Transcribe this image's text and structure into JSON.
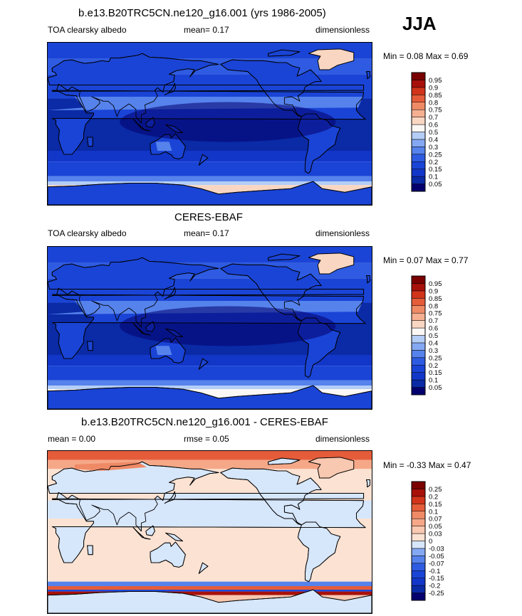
{
  "season": "JJA",
  "colors": {
    "land_line": "#000000",
    "dark_blue": "#0a2aa6",
    "mid_blue": "#1a44d6",
    "light_blue": "#a8c8f5",
    "peach": "#f8c8b0",
    "white": "#ffffff",
    "red": "#d83b1e",
    "dark_red": "#900000"
  },
  "panels": [
    {
      "title": "b.e13.B20TRC5CN.ne120_g16.001 (yrs 1986-2005)",
      "left_label": "TOA clearsky albedo",
      "mid_label": "mean=   0.17",
      "right_label": "dimensionless",
      "minmax": "Min =   0.08 Max =   0.69",
      "type": "albedo"
    },
    {
      "title": "CERES-EBAF",
      "left_label": "TOA clearsky albedo",
      "mid_label": "mean=   0.17",
      "right_label": "dimensionless",
      "minmax": "Min =   0.07 Max =   0.77",
      "type": "albedo"
    },
    {
      "title": "b.e13.B20TRC5CN.ne120_g16.001 - CERES-EBAF",
      "left_label": "mean =    0.00",
      "mid_label": "rmse =   0.05",
      "right_label": "dimensionless",
      "minmax": "Min =  -0.33 Max =   0.47",
      "type": "diff"
    }
  ],
  "chart_data": [
    {
      "type": "heatmap",
      "title": "b.e13.B20TRC5CN.ne120_g16.001 (yrs 1986-2005)",
      "variable": "TOA clearsky albedo",
      "units": "dimensionless",
      "mean": 0.17,
      "min": 0.08,
      "max": 0.69,
      "colorbar_levels": [
        "0.05",
        "0.1",
        "0.15",
        "0.2",
        "0.25",
        "0.3",
        "0.4",
        "0.5",
        "0.6",
        "0.7",
        "0.75",
        "0.8",
        "0.85",
        "0.9",
        "0.95"
      ],
      "colorbar_colors": [
        "#04006e",
        "#0a2aa6",
        "#1236c8",
        "#1a44d6",
        "#2e5be2",
        "#5682ec",
        "#84a8f2",
        "#b4cdf6",
        "#fbf7f5",
        "#f8d6c2",
        "#f5b092",
        "#ef8a66",
        "#e55c3a",
        "#d1341a",
        "#a8100a",
        "#7a0000"
      ]
    },
    {
      "type": "heatmap",
      "title": "CERES-EBAF",
      "variable": "TOA clearsky albedo",
      "units": "dimensionless",
      "mean": 0.17,
      "min": 0.07,
      "max": 0.77,
      "colorbar_levels": [
        "0.05",
        "0.1",
        "0.15",
        "0.2",
        "0.25",
        "0.3",
        "0.4",
        "0.5",
        "0.6",
        "0.7",
        "0.75",
        "0.8",
        "0.85",
        "0.9",
        "0.95"
      ],
      "colorbar_colors": [
        "#04006e",
        "#0a2aa6",
        "#1236c8",
        "#1a44d6",
        "#2e5be2",
        "#5682ec",
        "#84a8f2",
        "#b4cdf6",
        "#fbf7f5",
        "#f8d6c2",
        "#f5b092",
        "#ef8a66",
        "#e55c3a",
        "#d1341a",
        "#a8100a",
        "#7a0000"
      ]
    },
    {
      "type": "heatmap",
      "title": "b.e13.B20TRC5CN.ne120_g16.001 - CERES-EBAF",
      "units": "dimensionless",
      "mean": 0.0,
      "rmse": 0.05,
      "min": -0.33,
      "max": 0.47,
      "colorbar_levels": [
        "-0.25",
        "-0.2",
        "-0.15",
        "-0.1",
        "-0.07",
        "-0.05",
        "-0.03",
        "0",
        "0.03",
        "0.05",
        "0.07",
        "0.1",
        "0.15",
        "0.2",
        "0.25"
      ],
      "colorbar_colors": [
        "#04006e",
        "#0a2aa6",
        "#1236c8",
        "#1a44d6",
        "#2e5be2",
        "#5682ec",
        "#84a8f2",
        "#d6e6fb",
        "#fbe2d2",
        "#f8c8b0",
        "#f5a888",
        "#ef8a66",
        "#e55c3a",
        "#d1341a",
        "#a8100a",
        "#7a0000"
      ]
    }
  ]
}
